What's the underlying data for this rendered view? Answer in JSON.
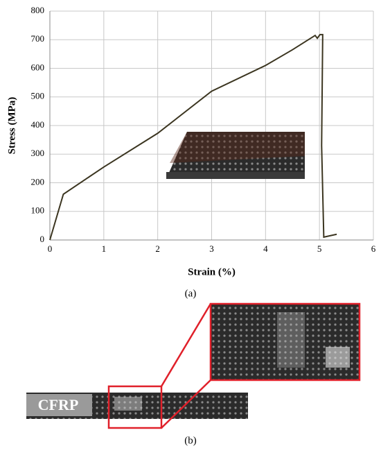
{
  "chart_data": {
    "type": "line",
    "xlabel": "Strain (%)",
    "ylabel": "Stress (MPa)",
    "caption": "(a)",
    "x": [
      0,
      0.25,
      1,
      2,
      3,
      4,
      4.5,
      4.92,
      4.96,
      5.01,
      5.06,
      5.04,
      5.08,
      5.32
    ],
    "values": [
      0,
      160,
      255,
      373,
      520,
      610,
      665,
      715,
      705,
      718,
      718,
      330,
      10,
      20
    ],
    "color": "#3b3520",
    "xlim": [
      0,
      6
    ],
    "xticks": [
      0,
      1,
      2,
      3,
      4,
      5,
      6
    ],
    "ylim": [
      0,
      800
    ],
    "yticks": [
      0,
      100,
      200,
      300,
      400,
      500,
      600,
      700,
      800
    ],
    "grid": true
  },
  "panel_b": {
    "photo_label": "CFRP",
    "caption": "(b)"
  }
}
